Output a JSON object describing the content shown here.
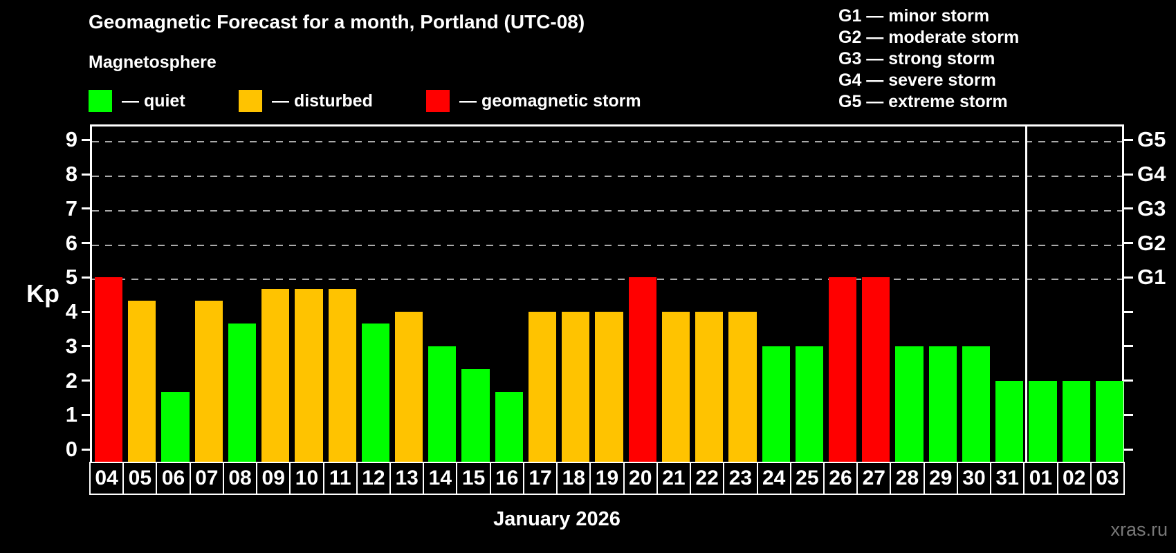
{
  "title": "Geomagnetic Forecast for a month, Portland (UTC-08)",
  "subtitle": "Magnetosphere",
  "legend": {
    "items": [
      {
        "name": "quiet",
        "label": "— quiet",
        "color": "#00ff00"
      },
      {
        "name": "disturbed",
        "label": "— disturbed",
        "color": "#ffc300"
      },
      {
        "name": "geomagnetic-storm",
        "label": "— geomagnetic storm",
        "color": "#ff0000"
      }
    ]
  },
  "storm_scale_legend": [
    "G1 — minor storm",
    "G2 — moderate storm",
    "G3 — strong storm",
    "G4 — severe storm",
    "G5 — extreme storm"
  ],
  "watermark": "xras.ru",
  "chart_data": {
    "type": "bar",
    "title": "Geomagnetic Forecast for a month, Portland (UTC-08)",
    "xlabel": "January 2026",
    "ylabel": "Kp",
    "categories": [
      "04",
      "05",
      "06",
      "07",
      "08",
      "09",
      "10",
      "11",
      "12",
      "13",
      "14",
      "15",
      "16",
      "17",
      "18",
      "19",
      "20",
      "21",
      "22",
      "23",
      "24",
      "25",
      "26",
      "27",
      "28",
      "29",
      "30",
      "31",
      "01",
      "02",
      "03"
    ],
    "values": [
      5.0,
      4.33,
      1.67,
      4.33,
      3.67,
      4.67,
      4.67,
      4.67,
      3.67,
      4.0,
      3.0,
      2.33,
      1.67,
      4.0,
      4.0,
      4.0,
      5.0,
      4.0,
      4.0,
      4.0,
      3.0,
      3.0,
      5.0,
      5.0,
      3.0,
      3.0,
      3.0,
      2.0,
      2.0,
      2.0,
      2.0
    ],
    "statuses": [
      "storm",
      "disturbed",
      "quiet",
      "disturbed",
      "quiet",
      "disturbed",
      "disturbed",
      "disturbed",
      "quiet",
      "disturbed",
      "quiet",
      "quiet",
      "quiet",
      "disturbed",
      "disturbed",
      "disturbed",
      "storm",
      "disturbed",
      "disturbed",
      "disturbed",
      "quiet",
      "quiet",
      "storm",
      "storm",
      "quiet",
      "quiet",
      "quiet",
      "quiet",
      "quiet",
      "quiet",
      "quiet"
    ],
    "status_colors": {
      "quiet": "#00ff00",
      "disturbed": "#ffc300",
      "storm": "#ff0000"
    },
    "ylim": [
      -0.36,
      9.45
    ],
    "yticks": [
      0,
      1,
      2,
      3,
      4,
      5,
      6,
      7,
      8,
      9
    ],
    "grid_values": [
      5,
      6,
      7,
      8,
      9
    ],
    "right_axis_labels": {
      "5": "G1",
      "6": "G2",
      "7": "G3",
      "8": "G4",
      "9": "G5"
    },
    "legend_position": "top-left",
    "grid": "dashed horizontal, upper half only",
    "month_separator_after_index": 27
  }
}
